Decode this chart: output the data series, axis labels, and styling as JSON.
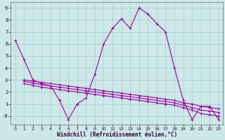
{
  "xlabel": "Windchill (Refroidissement éolien,°C)",
  "bg_color": "#cce8e8",
  "line_color": "#990099",
  "grid_color": "#aacccc",
  "series1_x": [
    0,
    1,
    2,
    3,
    4,
    5,
    6,
    7,
    8,
    9,
    10,
    11,
    12,
    13,
    14,
    15,
    16,
    17,
    18,
    19,
    20,
    21,
    22,
    23
  ],
  "series1_y": [
    6.3,
    4.7,
    3.0,
    2.7,
    2.5,
    1.3,
    -0.3,
    1.0,
    1.5,
    3.5,
    6.0,
    7.3,
    8.1,
    7.3,
    9.0,
    8.5,
    7.7,
    7.0,
    4.0,
    1.3,
    -0.3,
    0.8,
    0.8,
    -0.3
  ],
  "series2_x": [
    1,
    2,
    3,
    4,
    5,
    6,
    7,
    8,
    9,
    10,
    11,
    12,
    13,
    14,
    15,
    16,
    17,
    18,
    19,
    20,
    21,
    22,
    23
  ],
  "series2_y": [
    3.0,
    2.9,
    2.8,
    2.7,
    2.6,
    2.5,
    2.4,
    2.3,
    2.2,
    2.1,
    2.0,
    1.9,
    1.8,
    1.7,
    1.6,
    1.5,
    1.4,
    1.3,
    1.1,
    1.0,
    0.8,
    0.7,
    0.6
  ],
  "series3_x": [
    1,
    2,
    3,
    4,
    5,
    6,
    7,
    8,
    9,
    10,
    11,
    12,
    13,
    14,
    15,
    16,
    17,
    18,
    19,
    20,
    21,
    22,
    23
  ],
  "series3_y": [
    2.9,
    2.75,
    2.6,
    2.5,
    2.4,
    2.3,
    2.2,
    2.1,
    2.0,
    1.9,
    1.8,
    1.7,
    1.6,
    1.5,
    1.4,
    1.3,
    1.2,
    1.1,
    0.9,
    0.7,
    0.5,
    0.4,
    0.3
  ],
  "series4_x": [
    1,
    2,
    3,
    4,
    5,
    6,
    7,
    8,
    9,
    10,
    11,
    12,
    13,
    14,
    15,
    16,
    17,
    18,
    19,
    20,
    21,
    22,
    23
  ],
  "series4_y": [
    2.7,
    2.55,
    2.4,
    2.3,
    2.2,
    2.1,
    2.0,
    1.9,
    1.8,
    1.7,
    1.6,
    1.5,
    1.4,
    1.3,
    1.2,
    1.1,
    1.0,
    0.9,
    0.7,
    0.5,
    0.2,
    0.1,
    0.0
  ],
  "xlim": [
    -0.5,
    23.5
  ],
  "ylim": [
    -0.7,
    9.5
  ],
  "yticks": [
    0,
    1,
    2,
    3,
    4,
    5,
    6,
    7,
    8,
    9
  ],
  "xticks": [
    0,
    1,
    2,
    3,
    4,
    5,
    6,
    7,
    8,
    9,
    10,
    11,
    12,
    13,
    14,
    15,
    16,
    17,
    18,
    19,
    20,
    21,
    22,
    23
  ]
}
